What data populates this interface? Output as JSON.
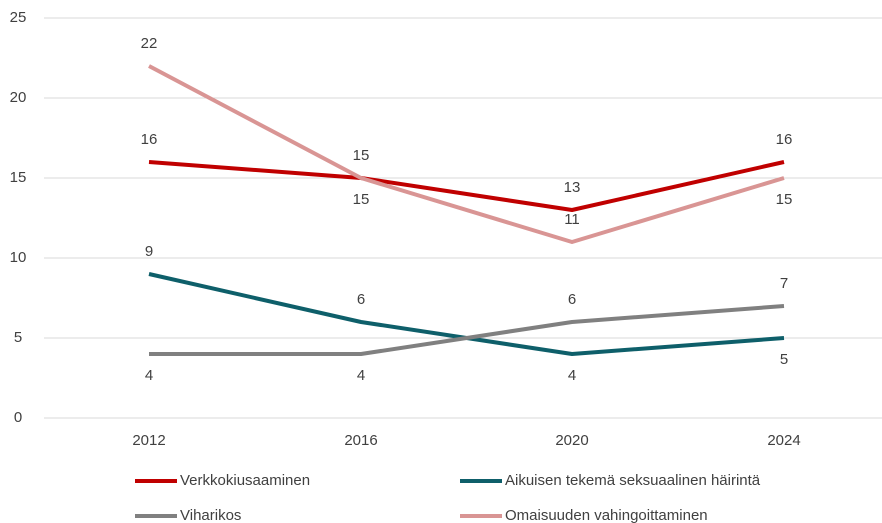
{
  "chart_data": {
    "type": "line",
    "categories": [
      "2012",
      "2016",
      "2020",
      "2024"
    ],
    "series": [
      {
        "name": "Verkkokiusaaminen",
        "color": "#c00000",
        "values": [
          16,
          15,
          13,
          16
        ]
      },
      {
        "name": "Aikuisen tekemä seksuaalinen häirintä",
        "color": "#0e5f6a",
        "values": [
          9,
          6,
          4,
          5
        ]
      },
      {
        "name": "Viharikos",
        "color": "#808080",
        "values": [
          4,
          4,
          6,
          7
        ]
      },
      {
        "name": "Omaisuuden vahingoittaminen",
        "color": "#d99594",
        "values": [
          22,
          15,
          11,
          15
        ]
      }
    ],
    "ylim": [
      0,
      25
    ],
    "yticks": [
      0,
      5,
      10,
      15,
      20,
      25
    ],
    "grid": true,
    "legend": "bottom"
  }
}
